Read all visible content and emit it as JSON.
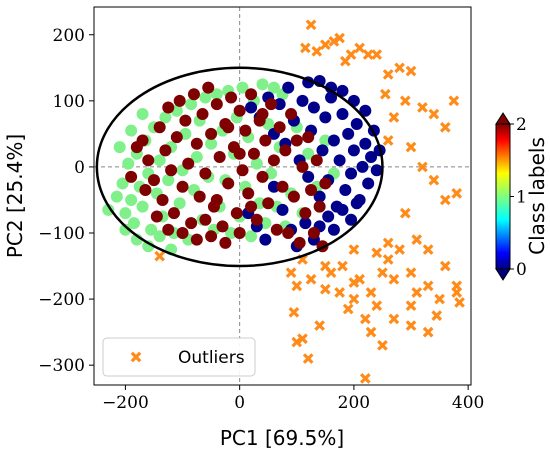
{
  "chart_data": {
    "type": "scatter",
    "xlabel": "PC1 [69.5%]",
    "ylabel": "PC2 [25.4%]",
    "xlim": [
      -255,
      405
    ],
    "ylim": [
      -330,
      242
    ],
    "xticks": [
      -200,
      0,
      200,
      400
    ],
    "yticks": [
      200,
      100,
      0,
      -100,
      -200,
      -300
    ],
    "grid": false,
    "reference_lines": {
      "x": 0,
      "y": 0,
      "style": "dashed",
      "color": "#888888"
    },
    "legend": {
      "position": "lower-left",
      "entries": [
        "Outliers"
      ]
    },
    "colorbar": {
      "label": "Class labels",
      "range": [
        0,
        2
      ],
      "ticks": [
        0,
        1,
        2
      ],
      "colormap": "jet",
      "extend": "both"
    },
    "ellipse": {
      "center": [
        0,
        0
      ],
      "semi_axis_x": 250,
      "semi_axis_y": 150,
      "color": "#000000"
    },
    "colors": {
      "class_0": "#00008b",
      "class_1": "#80f08a",
      "class_2": "#7f0000",
      "outliers": "#ff8c1a"
    },
    "series": [
      {
        "class_value": 1,
        "points": [
          [
            -230,
            -65
          ],
          [
            -215,
            -45
          ],
          [
            -205,
            -25
          ],
          [
            -200,
            -70
          ],
          [
            -195,
            5
          ],
          [
            -190,
            -50
          ],
          [
            -185,
            -85
          ],
          [
            -180,
            20
          ],
          [
            -175,
            -30
          ],
          [
            -170,
            -60
          ],
          [
            -165,
            40
          ],
          [
            -160,
            -10
          ],
          [
            -155,
            -95
          ],
          [
            -150,
            60
          ],
          [
            -145,
            -40
          ],
          [
            -140,
            10
          ],
          [
            -135,
            -75
          ],
          [
            -130,
            75
          ],
          [
            -125,
            -20
          ],
          [
            -120,
            30
          ],
          [
            -115,
            -100
          ],
          [
            -110,
            85
          ],
          [
            -105,
            -55
          ],
          [
            -100,
            -5
          ],
          [
            -95,
            50
          ],
          [
            -90,
            -110
          ],
          [
            -85,
            95
          ],
          [
            -80,
            -35
          ],
          [
            -75,
            15
          ],
          [
            -70,
            70
          ],
          [
            -65,
            -80
          ],
          [
            -60,
            105
          ],
          [
            -55,
            -15
          ],
          [
            -50,
            35
          ],
          [
            -45,
            -95
          ],
          [
            -40,
            110
          ],
          [
            -35,
            -60
          ],
          [
            -30,
            55
          ],
          [
            -25,
            -20
          ],
          [
            -20,
            115
          ],
          [
            -15,
            -100
          ],
          [
            -10,
            20
          ],
          [
            -5,
            75
          ],
          [
            0,
            -75
          ],
          [
            5,
            120
          ],
          [
            10,
            -30
          ],
          [
            15,
            45
          ],
          [
            20,
            -105
          ],
          [
            25,
            100
          ],
          [
            30,
            5
          ],
          [
            35,
            -55
          ],
          [
            40,
            125
          ],
          [
            45,
            -85
          ],
          [
            50,
            65
          ],
          [
            55,
            -10
          ],
          [
            60,
            120
          ],
          [
            65,
            -60
          ],
          [
            70,
            30
          ],
          [
            75,
            110
          ],
          [
            80,
            -90
          ],
          [
            90,
            -40
          ],
          [
            100,
            60
          ],
          [
            110,
            -70
          ],
          [
            120,
            20
          ],
          [
            135,
            -30
          ],
          [
            150,
            40
          ],
          [
            165,
            -10
          ],
          [
            -200,
            -95
          ],
          [
            -180,
            -110
          ],
          [
            -160,
            -120
          ],
          [
            -140,
            -105
          ],
          [
            -120,
            -125
          ],
          [
            -210,
            30
          ],
          [
            -190,
            55
          ],
          [
            -170,
            80
          ]
        ]
      },
      {
        "class_value": 0,
        "points": [
          [
            20,
            90
          ],
          [
            35,
            75
          ],
          [
            50,
            105
          ],
          [
            60,
            50
          ],
          [
            70,
            95
          ],
          [
            80,
            35
          ],
          [
            85,
            120
          ],
          [
            95,
            70
          ],
          [
            105,
            10
          ],
          [
            110,
            100
          ],
          [
            120,
            -15
          ],
          [
            125,
            55
          ],
          [
            130,
            90
          ],
          [
            140,
            -45
          ],
          [
            145,
            25
          ],
          [
            150,
            75
          ],
          [
            155,
            -20
          ],
          [
            160,
            105
          ],
          [
            165,
            40
          ],
          [
            170,
            -60
          ],
          [
            175,
            10
          ],
          [
            180,
            80
          ],
          [
            185,
            -35
          ],
          [
            190,
            50
          ],
          [
            195,
            -10
          ],
          [
            200,
            25
          ],
          [
            205,
            65
          ],
          [
            210,
            -50
          ],
          [
            215,
            0
          ],
          [
            220,
            35
          ],
          [
            225,
            -25
          ],
          [
            230,
            15
          ],
          [
            60,
            -30
          ],
          [
            75,
            -65
          ],
          [
            90,
            -95
          ],
          [
            100,
            -120
          ],
          [
            115,
            -85
          ],
          [
            130,
            -110
          ],
          [
            140,
            -90
          ],
          [
            155,
            -75
          ],
          [
            165,
            -95
          ],
          [
            180,
            -65
          ],
          [
            195,
            -80
          ],
          [
            205,
            -55
          ],
          [
            45,
            -110
          ],
          [
            30,
            -90
          ],
          [
            15,
            -70
          ],
          [
            240,
            -5
          ],
          [
            245,
            25
          ],
          [
            235,
            55
          ],
          [
            220,
            85
          ],
          [
            200,
            100
          ],
          [
            180,
            115
          ],
          [
            160,
            120
          ],
          [
            140,
            130
          ],
          [
            120,
            128
          ]
        ]
      },
      {
        "class_value": 2,
        "points": [
          [
            -170,
            40
          ],
          [
            -160,
            10
          ],
          [
            -150,
            -20
          ],
          [
            -140,
            60
          ],
          [
            -135,
            -50
          ],
          [
            -130,
            25
          ],
          [
            -125,
            90
          ],
          [
            -120,
            -5
          ],
          [
            -115,
            -70
          ],
          [
            -110,
            45
          ],
          [
            -105,
            100
          ],
          [
            -100,
            -30
          ],
          [
            -95,
            70
          ],
          [
            -90,
            5
          ],
          [
            -85,
            -85
          ],
          [
            -80,
            110
          ],
          [
            -75,
            35
          ],
          [
            -70,
            -45
          ],
          [
            -65,
            80
          ],
          [
            -60,
            -10
          ],
          [
            -55,
            120
          ],
          [
            -50,
            50
          ],
          [
            -45,
            -60
          ],
          [
            -40,
            95
          ],
          [
            -35,
            15
          ],
          [
            -30,
            -90
          ],
          [
            -25,
            65
          ],
          [
            -20,
            -25
          ],
          [
            -15,
            105
          ],
          [
            -10,
            30
          ],
          [
            -5,
            -70
          ],
          [
            0,
            85
          ],
          [
            5,
            -5
          ],
          [
            10,
            55
          ],
          [
            15,
            -40
          ],
          [
            20,
            110
          ],
          [
            25,
            20
          ],
          [
            30,
            -80
          ],
          [
            35,
            70
          ],
          [
            40,
            -15
          ],
          [
            45,
            40
          ],
          [
            50,
            -55
          ],
          [
            55,
            95
          ],
          [
            60,
            10
          ],
          [
            65,
            -95
          ],
          [
            70,
            60
          ],
          [
            75,
            -30
          ],
          [
            80,
            25
          ],
          [
            85,
            -100
          ],
          [
            90,
            80
          ],
          [
            95,
            -45
          ],
          [
            100,
            40
          ],
          [
            105,
            -115
          ],
          [
            110,
            0
          ],
          [
            115,
            -70
          ],
          [
            120,
            45
          ],
          [
            125,
            -35
          ],
          [
            130,
            -100
          ],
          [
            135,
            10
          ],
          [
            140,
            -60
          ],
          [
            145,
            -120
          ],
          [
            150,
            -25
          ],
          [
            -190,
            -15
          ],
          [
            -180,
            30
          ],
          [
            -165,
            -35
          ],
          [
            -145,
            -75
          ],
          [
            -125,
            -95
          ],
          [
            -100,
            -100
          ],
          [
            -75,
            -110
          ],
          [
            -50,
            -105
          ],
          [
            -25,
            -115
          ],
          [
            0,
            -100
          ],
          [
            -60,
            -80
          ],
          [
            -40,
            -50
          ],
          [
            -20,
            60
          ],
          [
            0,
            20
          ],
          [
            20,
            -60
          ],
          [
            40,
            80
          ]
        ]
      },
      {
        "class_value": "outliers",
        "points": [
          [
            125,
            215
          ],
          [
            115,
            180
          ],
          [
            135,
            175
          ],
          [
            150,
            185
          ],
          [
            165,
            190
          ],
          [
            175,
            195
          ],
          [
            185,
            160
          ],
          [
            195,
            170
          ],
          [
            210,
            180
          ],
          [
            225,
            170
          ],
          [
            240,
            170
          ],
          [
            260,
            140
          ],
          [
            280,
            150
          ],
          [
            300,
            145
          ],
          [
            255,
            110
          ],
          [
            290,
            100
          ],
          [
            320,
            90
          ],
          [
            270,
            75
          ],
          [
            340,
            80
          ],
          [
            360,
            60
          ],
          [
            375,
            100
          ],
          [
            260,
            40
          ],
          [
            300,
            30
          ],
          [
            320,
            0
          ],
          [
            340,
            -20
          ],
          [
            360,
            -50
          ],
          [
            380,
            -40
          ],
          [
            290,
            -70
          ],
          [
            310,
            -110
          ],
          [
            330,
            -125
          ],
          [
            260,
            -140
          ],
          [
            270,
            -170
          ],
          [
            300,
            -160
          ],
          [
            330,
            -180
          ],
          [
            350,
            -200
          ],
          [
            380,
            -190
          ],
          [
            240,
            -210
          ],
          [
            270,
            -230
          ],
          [
            230,
            -250
          ],
          [
            250,
            -270
          ],
          [
            330,
            -250
          ],
          [
            300,
            -210
          ],
          [
            200,
            -200
          ],
          [
            175,
            -190
          ],
          [
            150,
            -185
          ],
          [
            125,
            -170
          ],
          [
            100,
            -180
          ],
          [
            90,
            -160
          ],
          [
            110,
            -140
          ],
          [
            150,
            -150
          ],
          [
            180,
            -150
          ],
          [
            210,
            -170
          ],
          [
            220,
            -230
          ],
          [
            190,
            -215
          ],
          [
            310,
            -190
          ],
          [
            -140,
            -135
          ],
          [
            140,
            -240
          ],
          [
            110,
            -260
          ],
          [
            100,
            -265
          ],
          [
            95,
            -220
          ],
          [
            220,
            -320
          ],
          [
            300,
            -240
          ],
          [
            385,
            -205
          ],
          [
            230,
            -190
          ],
          [
            380,
            -180
          ],
          [
            345,
            -225
          ],
          [
            360,
            -150
          ],
          [
            120,
            -290
          ],
          [
            200,
            -125
          ],
          [
            240,
            -130
          ],
          [
            260,
            -115
          ],
          [
            280,
            -125
          ],
          [
            250,
            -160
          ],
          [
            200,
            -175
          ],
          [
            160,
            -160
          ]
        ]
      }
    ]
  }
}
